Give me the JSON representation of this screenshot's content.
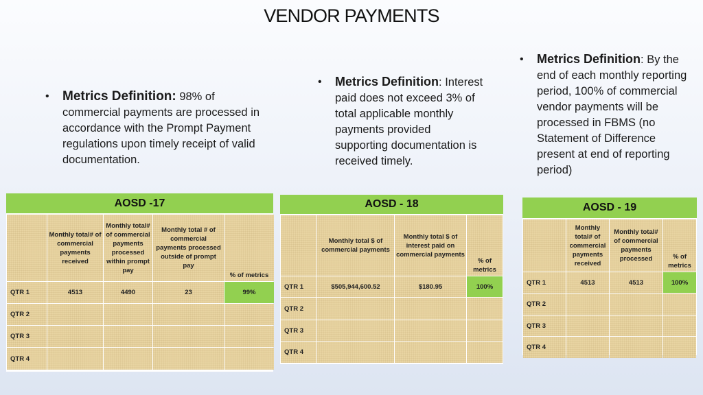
{
  "title": "VENDOR PAYMENTS",
  "bullets": [
    {
      "dot": "•",
      "head": "Metrics Definition",
      "colon": ":",
      "text": " 98% of commercial payments are processed in accordance with the Prompt Payment regulations upon timely receipt of valid documentation."
    },
    {
      "dot": "•",
      "head": "Metrics Definition",
      "colon": ":",
      "text": " Interest paid does not exceed 3% of total applicable monthly payments provided supporting documentation is received timely."
    },
    {
      "dot": "•",
      "head": "Metrics Definition",
      "colon": ":",
      "text": " By the end of each monthly reporting period, 100% of commercial vendor payments will be processed in FBMS (no Statement of Difference present at end of reporting period)"
    }
  ],
  "tables": [
    {
      "name": "AOSD -17",
      "headers": [
        "",
        "Monthly total# of commercial payments received",
        "Monthly total# of commercial payments processed within prompt pay",
        "Monthly total # of commercial payments processed outside of prompt pay",
        "% of metrics"
      ],
      "rows": [
        [
          "QTR 1",
          "4513",
          "4490",
          "23",
          "99%"
        ],
        [
          "QTR 2",
          "",
          "",
          "",
          ""
        ],
        [
          "QTR 3",
          "",
          "",
          "",
          ""
        ],
        [
          "QTR 4",
          "",
          "",
          "",
          ""
        ]
      ]
    },
    {
      "name": "AOSD - 18",
      "headers": [
        "",
        "Monthly total $ of commercial payments",
        "Monthly total $ of interest paid on commercial payments",
        "% of metrics"
      ],
      "rows": [
        [
          "QTR 1",
          "$505,944,600.52",
          "$180.95",
          "100%"
        ],
        [
          "QTR 2",
          "",
          "",
          ""
        ],
        [
          "QTR 3",
          "",
          "",
          ""
        ],
        [
          "QTR 4",
          "",
          "",
          ""
        ]
      ]
    },
    {
      "name": "AOSD - 19",
      "headers": [
        "",
        "Monthly total# of commercial payments received",
        "Monthly total# of commercial payments processed",
        "% of metrics"
      ],
      "rows": [
        [
          "QTR 1",
          "4513",
          "4513",
          "100%"
        ],
        [
          "QTR 2",
          "",
          "",
          ""
        ],
        [
          "QTR 3",
          "",
          "",
          ""
        ],
        [
          "QTR 4",
          "",
          "",
          ""
        ]
      ]
    }
  ],
  "colors": {
    "header_green": "#92d050",
    "cell_tan": "#e8d4a2"
  }
}
